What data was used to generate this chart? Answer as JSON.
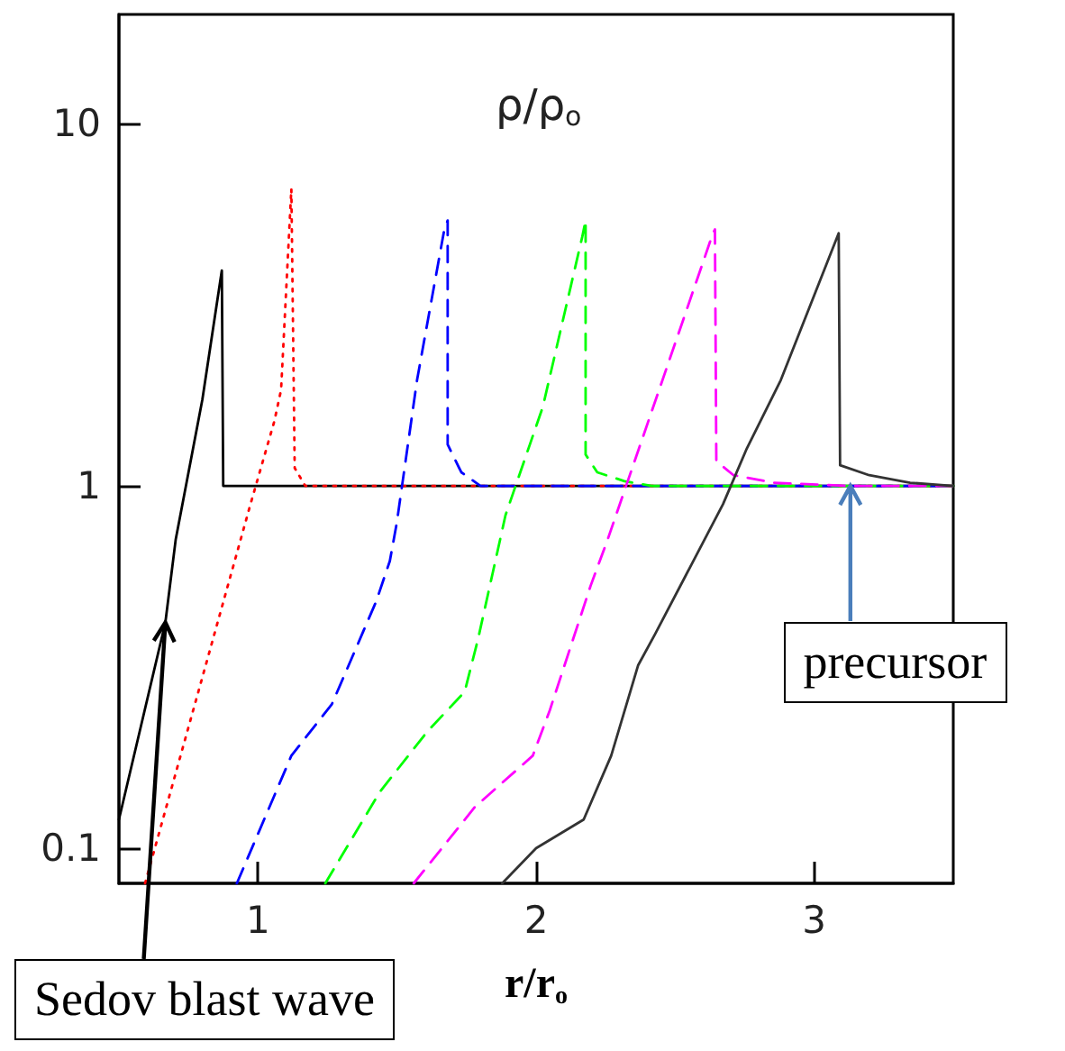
{
  "chart_data": {
    "type": "line",
    "title": "ρ/ρ$_{o}$",
    "xlabel": "r/r$_{o}$",
    "xlim": [
      0.5,
      3.5
    ],
    "xticks": [
      1,
      2,
      3
    ],
    "ylim": [
      0.08,
      20
    ],
    "yticks": [
      0.1,
      1,
      10
    ],
    "log": "y",
    "grid": false,
    "marker": "none",
    "series": [
      {
        "color": "#000000",
        "line_style": "solid",
        "x": [
          0.5,
          0.667,
          0.704,
          0.8,
          0.87,
          0.875,
          3.5
        ],
        "values": [
          0.12,
          0.42,
          0.71,
          1.73,
          3.93,
          1,
          1
        ]
      },
      {
        "color": "#ff0000",
        "line_style": "dotted",
        "x": [
          0.594,
          0.973,
          1.059,
          1.083,
          1.12,
          1.132,
          1.17,
          3.5
        ],
        "values": [
          0.08,
          0.89,
          1.51,
          1.84,
          6.6,
          1.12,
          1,
          1
        ]
      },
      {
        "color": "#0000ff",
        "line_style": "dashed",
        "x": [
          0.924,
          1.12,
          1.266,
          1.425,
          1.474,
          1.499,
          1.572,
          1.67,
          1.682,
          1.682,
          1.731,
          1.8,
          3.5
        ],
        "values": [
          0.08,
          0.18,
          0.25,
          0.48,
          0.62,
          0.79,
          1.96,
          5.1,
          5.4,
          1.3,
          1.09,
          1,
          1
        ]
      },
      {
        "color": "#00ff00",
        "line_style": "dashed",
        "x": [
          1.242,
          1.438,
          1.609,
          1.743,
          1.792,
          1.89,
          2.024,
          2.166,
          2.178,
          2.178,
          2.22,
          2.318,
          2.416,
          3.5
        ],
        "values": [
          0.08,
          0.143,
          0.21,
          0.27,
          0.38,
          0.83,
          1.65,
          4.87,
          5.4,
          1.22,
          1.09,
          1.03,
          1,
          1
        ]
      },
      {
        "color": "#ff00ff",
        "line_style": "dashed",
        "x": [
          1.56,
          1.78,
          1.988,
          2.049,
          2.196,
          2.257,
          2.636,
          2.643,
          2.648,
          2.71,
          2.856,
          3.125,
          3.5
        ],
        "values": [
          0.08,
          0.13,
          0.18,
          0.24,
          0.53,
          0.71,
          4.98,
          5.1,
          1.17,
          1.07,
          1.02,
          1,
          1
        ]
      },
      {
        "color": "#333333",
        "line_style": "solid",
        "x": [
          1.878,
          2.0,
          2.171,
          2.27,
          2.367,
          2.428,
          2.672,
          2.758,
          2.88,
          3.088,
          3.093,
          3.198,
          3.345,
          3.5
        ],
        "values": [
          0.08,
          0.1,
          0.12,
          0.18,
          0.32,
          0.39,
          0.89,
          1.27,
          1.96,
          4.98,
          1.14,
          1.07,
          1.02,
          1
        ]
      }
    ],
    "annotations": [
      {
        "text": "Sedov blast wave",
        "x": 0.667,
        "y": 0.42
      },
      {
        "text": "precursor",
        "x": 3.13,
        "y": 1
      }
    ]
  }
}
